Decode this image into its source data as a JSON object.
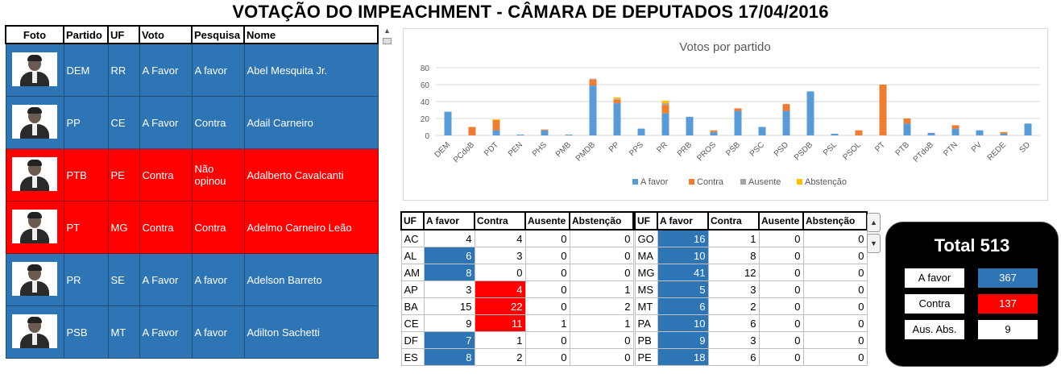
{
  "title": "VOTAÇÃO DO IMPEACHMENT - CÂMARA DE DEPUTADOS 17/04/2016",
  "deputies": {
    "headers": [
      "Foto",
      "Partido",
      "UF",
      "Voto",
      "Pesquisa",
      "Nome"
    ],
    "rows": [
      {
        "partido": "DEM",
        "uf": "RR",
        "voto": "A Favor",
        "pesquisa": "A favor",
        "nome": "Abel Mesquita Jr."
      },
      {
        "partido": "PP",
        "uf": "CE",
        "voto": "A Favor",
        "pesquisa": "Contra",
        "nome": "Adail Carneiro"
      },
      {
        "partido": "PTB",
        "uf": "PE",
        "voto": "Contra",
        "pesquisa": "Não opinou",
        "nome": "Adalberto Cavalcanti"
      },
      {
        "partido": "PT",
        "uf": "MG",
        "voto": "Contra",
        "pesquisa": "Contra",
        "nome": "Adelmo Carneiro Leão"
      },
      {
        "partido": "PR",
        "uf": "SE",
        "voto": "A Favor",
        "pesquisa": "A favor",
        "nome": "Adelson Barreto"
      },
      {
        "partido": "PSB",
        "uf": "MT",
        "voto": "A Favor",
        "pesquisa": "A favor",
        "nome": "Adilton Sachetti"
      }
    ]
  },
  "chart_data": {
    "type": "bar",
    "stacked": true,
    "title": "Votos por partido",
    "categories": [
      "DEM",
      "PCdoB",
      "PDT",
      "PEN",
      "PHS",
      "PMB",
      "PMDB",
      "PP",
      "PPS",
      "PR",
      "PRB",
      "PROS",
      "PSB",
      "PSC",
      "PSD",
      "PSDB",
      "PSL",
      "PSOL",
      "PT",
      "PTB",
      "PTdoB",
      "PTN",
      "PV",
      "REDE",
      "SD"
    ],
    "series": [
      {
        "name": "A favor",
        "color": "#5b9bd5",
        "values": [
          28,
          0,
          6,
          1,
          6,
          1,
          59,
          38,
          8,
          26,
          22,
          4,
          29,
          10,
          29,
          52,
          2,
          0,
          0,
          14,
          3,
          8,
          6,
          2,
          14
        ]
      },
      {
        "name": "Contra",
        "color": "#ed7d31",
        "values": [
          0,
          10,
          12,
          0,
          1,
          0,
          7,
          4,
          0,
          10,
          0,
          2,
          3,
          0,
          8,
          0,
          0,
          6,
          60,
          6,
          0,
          4,
          0,
          2,
          0
        ]
      },
      {
        "name": "Ausente",
        "color": "#a5a5a5",
        "values": [
          0,
          0,
          0,
          0,
          0,
          0,
          1,
          1,
          0,
          2,
          0,
          0,
          0,
          0,
          0,
          0,
          0,
          0,
          0,
          0,
          0,
          0,
          0,
          0,
          0
        ]
      },
      {
        "name": "Abstenção",
        "color": "#ffc000",
        "values": [
          0,
          0,
          1,
          0,
          0,
          0,
          0,
          2,
          0,
          3,
          0,
          0,
          0,
          0,
          0,
          0,
          0,
          0,
          0,
          0,
          0,
          0,
          0,
          0,
          0
        ]
      }
    ],
    "ylim": [
      0,
      80
    ],
    "yticks": [
      0,
      20,
      40,
      60,
      80
    ],
    "grid": true,
    "legend": "bottom"
  },
  "uf_headers": [
    "UF",
    "A favor",
    "Contra",
    "Ausente",
    "Abstenção"
  ],
  "uf_left": [
    {
      "uf": "AC",
      "favor": "4",
      "contra": "4",
      "ausente": "0",
      "abst": "0"
    },
    {
      "uf": "AL",
      "favor": "6",
      "contra": "3",
      "ausente": "0",
      "abst": "0"
    },
    {
      "uf": "AM",
      "favor": "8",
      "contra": "0",
      "ausente": "0",
      "abst": "0"
    },
    {
      "uf": "AP",
      "favor": "3",
      "contra": "4",
      "ausente": "0",
      "abst": "1"
    },
    {
      "uf": "BA",
      "favor": "15",
      "contra": "22",
      "ausente": "0",
      "abst": "2"
    },
    {
      "uf": "CE",
      "favor": "9",
      "contra": "11",
      "ausente": "1",
      "abst": "1"
    },
    {
      "uf": "DF",
      "favor": "7",
      "contra": "1",
      "ausente": "0",
      "abst": "0"
    },
    {
      "uf": "ES",
      "favor": "8",
      "contra": "2",
      "ausente": "0",
      "abst": "0"
    }
  ],
  "uf_right": [
    {
      "uf": "GO",
      "favor": "16",
      "contra": "1",
      "ausente": "0",
      "abst": "0"
    },
    {
      "uf": "MA",
      "favor": "10",
      "contra": "8",
      "ausente": "0",
      "abst": "0"
    },
    {
      "uf": "MG",
      "favor": "41",
      "contra": "12",
      "ausente": "0",
      "abst": "0"
    },
    {
      "uf": "MS",
      "favor": "5",
      "contra": "3",
      "ausente": "0",
      "abst": "0"
    },
    {
      "uf": "MT",
      "favor": "6",
      "contra": "2",
      "ausente": "0",
      "abst": "0"
    },
    {
      "uf": "PA",
      "favor": "10",
      "contra": "6",
      "ausente": "0",
      "abst": "0"
    },
    {
      "uf": "PB",
      "favor": "9",
      "contra": "3",
      "ausente": "0",
      "abst": "0"
    },
    {
      "uf": "PE",
      "favor": "18",
      "contra": "6",
      "ausente": "0",
      "abst": "0"
    }
  ],
  "total": {
    "title": "Total 513",
    "favor_label": "A favor",
    "favor_value": "367",
    "contra_label": "Contra",
    "contra_value": "137",
    "aus_label": "Aus. Abs.",
    "aus_value": "9"
  },
  "colors": {
    "favor": "#2e75b6",
    "contra": "#ff0000"
  },
  "icons": {
    "scroll_up": "▲",
    "scroll_down": "▼"
  }
}
